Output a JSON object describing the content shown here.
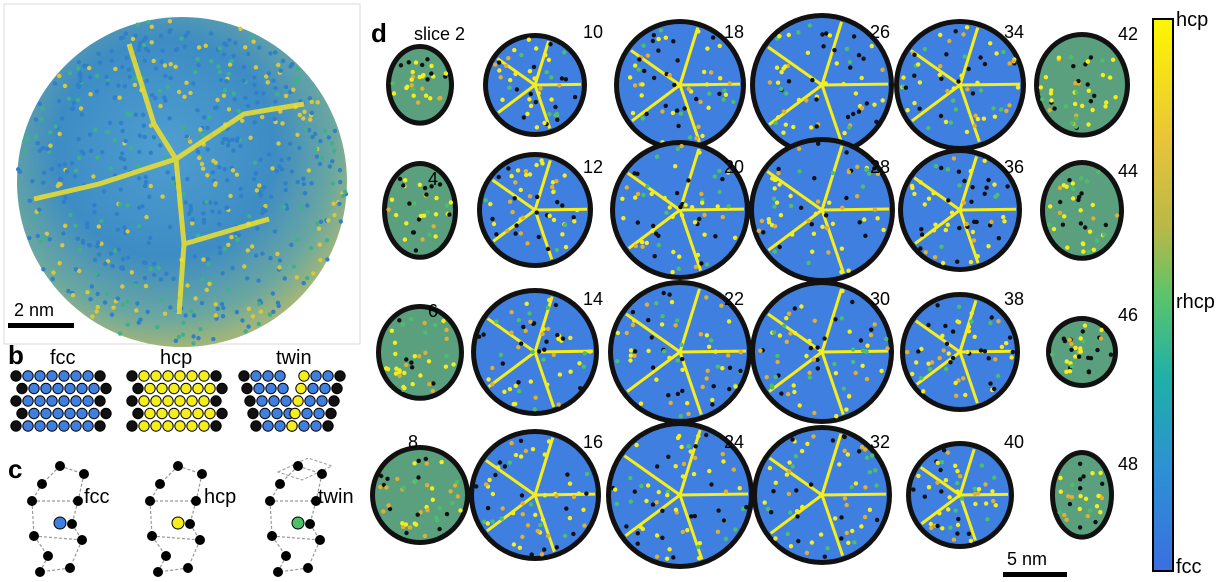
{
  "panels": {
    "a": {
      "label": "a",
      "scale_bar": "2 nm"
    },
    "b": {
      "label": "b",
      "structures": [
        "fcc",
        "hcp",
        "twin"
      ]
    },
    "c": {
      "label": "c",
      "structures": [
        "fcc",
        "hcp",
        "twin"
      ]
    },
    "d": {
      "label": "d",
      "first_label": "slice 2",
      "slices": [
        "10",
        "18",
        "26",
        "34",
        "42",
        "4",
        "12",
        "20",
        "28",
        "36",
        "44",
        "6",
        "14",
        "22",
        "30",
        "38",
        "46",
        "8",
        "16",
        "24",
        "32",
        "40",
        "48"
      ],
      "scale_bar": "5 nm"
    }
  },
  "colorbar": {
    "top": "hcp",
    "middle": "rhcp",
    "bottom": "fcc"
  },
  "colors": {
    "fcc": "#3f7fe0",
    "hcp": "#f5ee1a",
    "rhcp": "#4cbf6a",
    "surface": "#000000"
  }
}
